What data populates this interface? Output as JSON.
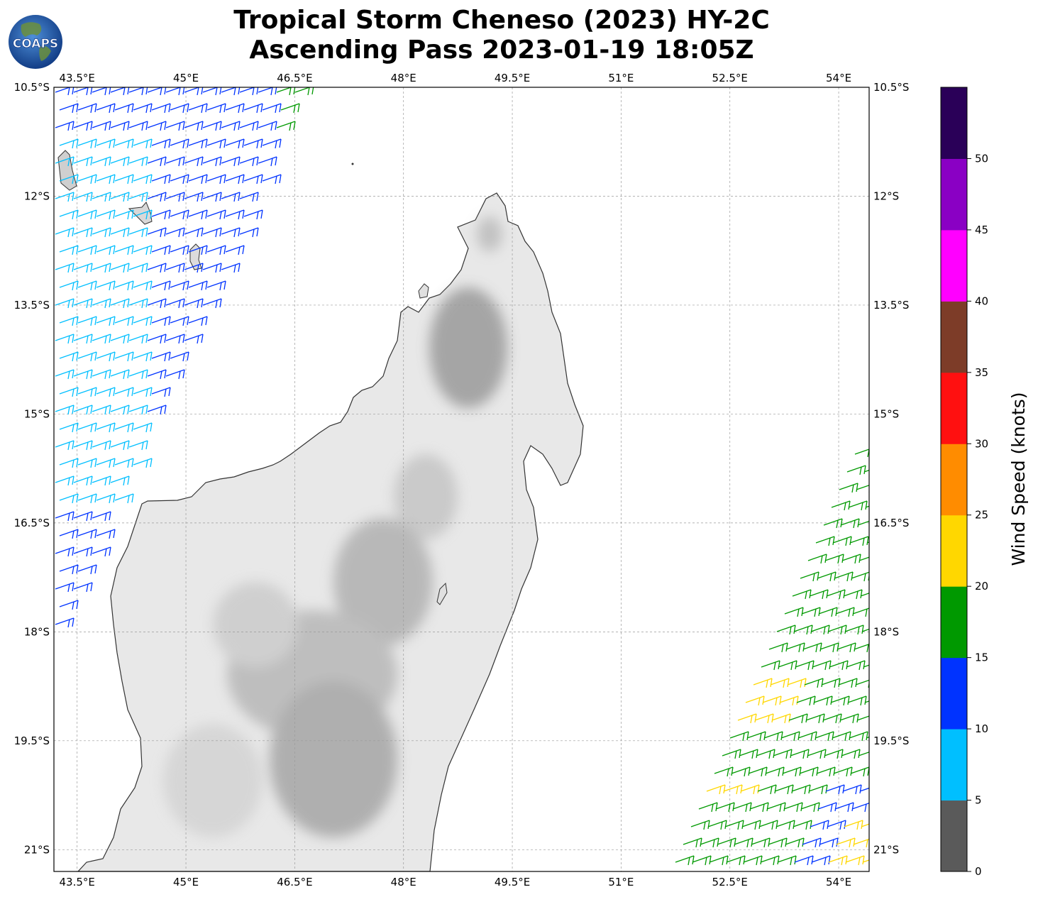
{
  "header": {
    "logo_text": "COAPS",
    "title_line1": "Tropical Storm Cheneso (2023) HY-2C",
    "title_line2": "Ascending Pass 2023-01-19 18:05Z"
  },
  "map": {
    "lon_ticks": [
      "43.5°E",
      "45°E",
      "46.5°E",
      "48°E",
      "49.5°E",
      "51°E",
      "52.5°E",
      "54°E"
    ],
    "lat_ticks": [
      "10.5°S",
      "12°S",
      "13.5°S",
      "15°S",
      "16.5°S",
      "18°S",
      "19.5°S",
      "21°S"
    ],
    "lon_range": [
      43.18,
      54.42
    ],
    "lat_range": [
      -10.5,
      -21.3
    ],
    "gridlines": true,
    "land_color": "#e6e6e6",
    "terrain_color": "#9a9a9a",
    "coast_color": "#333333"
  },
  "colorbar": {
    "label": "Wind Speed (knots)",
    "ticks": [
      "0",
      "5",
      "10",
      "15",
      "20",
      "25",
      "30",
      "35",
      "40",
      "45",
      "50"
    ],
    "colors": [
      "#5a5a5a",
      "#00bfff",
      "#0033ff",
      "#009900",
      "#ffd700",
      "#ff8c00",
      "#ff1010",
      "#7d3c28",
      "#ff00ff",
      "#8a00c4",
      "#2a0058"
    ]
  },
  "swaths": [
    {
      "name": "west-swath",
      "band_colors": [
        "#00bfff",
        "#0033ff",
        "#0033ff",
        "#009900"
      ],
      "patch_color": "#ffd700"
    },
    {
      "name": "east-swath",
      "band_colors": [
        "#009900",
        "#009900",
        "#009900",
        "#0033ff"
      ],
      "patch_color": "#ffd700"
    }
  ]
}
